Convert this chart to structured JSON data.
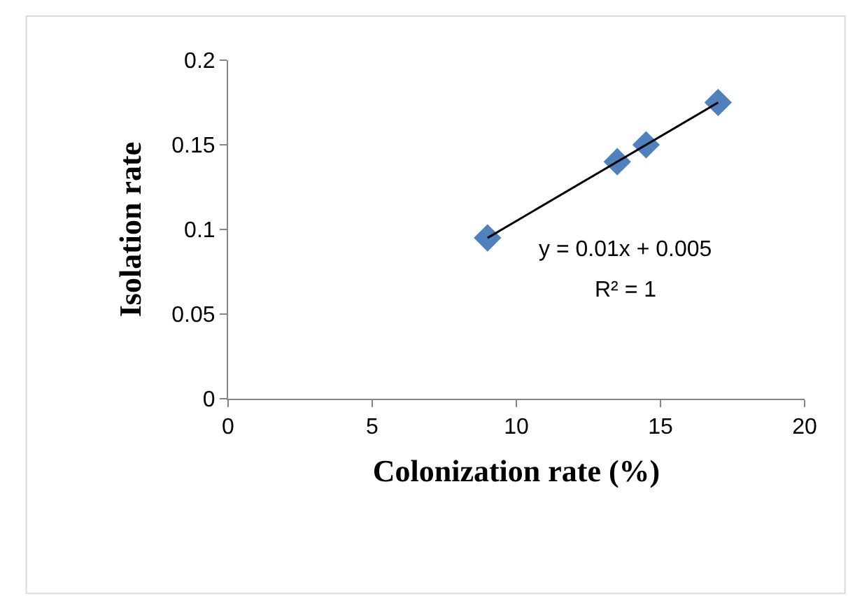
{
  "chart_data": {
    "type": "scatter",
    "xlabel": "Colonization rate (%)",
    "ylabel": "Isolation rate",
    "x": [
      9,
      13.5,
      14.5,
      17
    ],
    "series": [
      {
        "color": "#4f81bd",
        "marker": "diamond",
        "values": [
          0.095,
          0.14,
          0.15,
          0.175
        ]
      },
      {
        "type": "line",
        "color": "#000000",
        "marker": "none",
        "line_style": "solid",
        "x": [
          9,
          17
        ],
        "values": [
          0.095,
          0.175
        ]
      }
    ],
    "annotations": [
      "y = 0.01x + 0.005",
      "R² = 1"
    ],
    "xlim": [
      0,
      20
    ],
    "xticks": [
      0,
      5,
      10,
      15,
      20
    ],
    "ylim": [
      0,
      0.2
    ],
    "yticks": [
      0,
      0.05,
      0.1,
      0.15,
      0.2
    ]
  }
}
